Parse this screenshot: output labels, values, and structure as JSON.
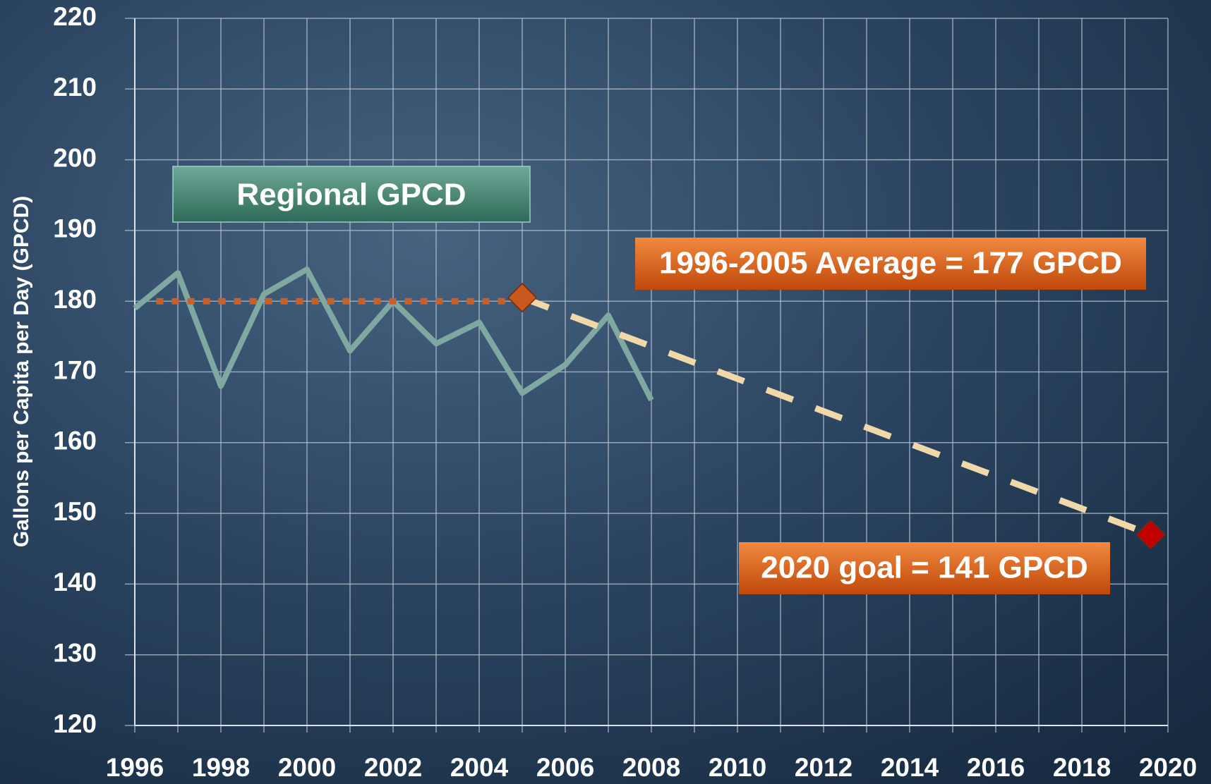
{
  "chart_data": {
    "type": "line",
    "y_label": "Gallons per Capita per Day (GPCD)",
    "xlim": [
      1996,
      2020
    ],
    "xticks": [
      1996,
      1998,
      2000,
      2002,
      2004,
      2006,
      2008,
      2010,
      2012,
      2014,
      2016,
      2018,
      2020
    ],
    "xminor_ticks": [
      1997,
      1999,
      2001,
      2003,
      2005,
      2007,
      2009,
      2011,
      2013,
      2015,
      2017,
      2019
    ],
    "ylim": [
      120,
      220
    ],
    "yticks": [
      120,
      130,
      140,
      150,
      160,
      170,
      180,
      190,
      200,
      210,
      220
    ],
    "grid": true,
    "series": [
      {
        "name": "Regional GPCD",
        "color": "#7fa8a0",
        "style": "solid",
        "x": [
          1996,
          1997,
          1998,
          1999,
          2000,
          2001,
          2002,
          2003,
          2004,
          2005,
          2006,
          2007,
          2008
        ],
        "values": [
          179,
          184,
          168,
          181,
          184.5,
          173,
          180,
          174,
          177,
          167,
          171,
          178,
          166
        ]
      },
      {
        "color": "#c8602a",
        "style": "dotted",
        "x": [
          1996.5,
          2005
        ],
        "values": [
          180,
          180
        ]
      },
      {
        "color": "#f0d8a8",
        "style": "dashed",
        "x": [
          2005,
          2019.6
        ],
        "values": [
          180.5,
          147
        ],
        "marker_colors": [
          "#c8581e",
          "#c00000"
        ]
      }
    ],
    "annotations": [
      {
        "text": "1996-2005 Average = 177 GPCD"
      },
      {
        "text": "2020 goal = 141 GPCD"
      }
    ]
  }
}
